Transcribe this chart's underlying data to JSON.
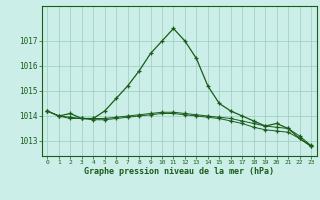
{
  "xlabel": "Graphe pression niveau de la mer (hPa)",
  "background_color": "#cceee8",
  "grid_color": "#99ccbb",
  "line_color": "#1a5c1a",
  "xlim": [
    -0.5,
    23.5
  ],
  "ylim": [
    1012.4,
    1018.4
  ],
  "yticks": [
    1013,
    1014,
    1015,
    1016,
    1017
  ],
  "yticklabels": [
    "1013",
    "1014",
    "1015",
    "1016",
    "1017"
  ],
  "xticks": [
    0,
    1,
    2,
    3,
    4,
    5,
    6,
    7,
    8,
    9,
    10,
    11,
    12,
    13,
    14,
    15,
    16,
    17,
    18,
    19,
    20,
    21,
    22,
    23
  ],
  "series1": [
    1014.2,
    1014.0,
    1014.1,
    1013.9,
    1013.9,
    1014.2,
    1014.7,
    1015.2,
    1015.8,
    1016.5,
    1017.0,
    1017.5,
    1017.0,
    1016.3,
    1015.2,
    1014.5,
    1014.2,
    1014.0,
    1013.8,
    1013.6,
    1013.7,
    1013.5,
    1013.1,
    1012.8
  ],
  "series2": [
    1014.2,
    1014.0,
    1013.95,
    1013.9,
    1013.9,
    1013.9,
    1013.95,
    1014.0,
    1014.05,
    1014.1,
    1014.15,
    1014.15,
    1014.1,
    1014.05,
    1014.0,
    1013.95,
    1013.9,
    1013.8,
    1013.7,
    1013.6,
    1013.55,
    1013.5,
    1013.2,
    1012.82
  ],
  "series3": [
    1014.2,
    1014.0,
    1013.9,
    1013.9,
    1013.85,
    1013.85,
    1013.9,
    1013.95,
    1014.0,
    1014.05,
    1014.1,
    1014.1,
    1014.05,
    1014.0,
    1013.95,
    1013.9,
    1013.8,
    1013.7,
    1013.55,
    1013.45,
    1013.4,
    1013.35,
    1013.1,
    1012.78
  ]
}
